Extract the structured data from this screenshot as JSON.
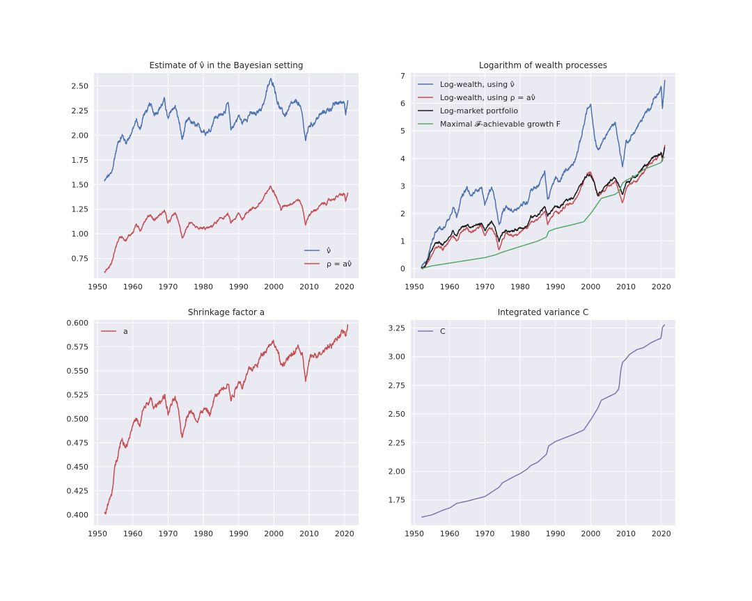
{
  "chart_data": [
    {
      "type": "line",
      "title": "Estimate of ν̂ in the Bayesian setting",
      "xlim": [
        1949,
        2024
      ],
      "ylim": [
        0.55,
        2.63
      ],
      "xticks": [
        1950,
        1960,
        1970,
        1980,
        1990,
        2000,
        2010,
        2020
      ],
      "yticks": [
        0.75,
        1.0,
        1.25,
        1.5,
        1.75,
        2.0,
        2.25,
        2.5
      ],
      "ytick_labels": [
        "0.75",
        "1.00",
        "1.25",
        "1.50",
        "1.75",
        "2.00",
        "2.25",
        "2.50"
      ],
      "legend_position": "lower-right",
      "grid": true,
      "series": [
        {
          "name": "ν̂",
          "color": "#4c72b0",
          "noise": 0.025,
          "x": [
            1952,
            1953,
            1954,
            1955,
            1956,
            1957,
            1958,
            1960,
            1961,
            1962,
            1963,
            1965,
            1966,
            1968,
            1969,
            1970,
            1971,
            1972,
            1973,
            1974,
            1975,
            1976,
            1978,
            1980,
            1982,
            1983,
            1985,
            1987,
            1987.8,
            1990,
            1991,
            1993,
            1995,
            1997,
            1998,
            1999,
            2000,
            2001,
            2002,
            2003,
            2005,
            2007,
            2008,
            2009,
            2010,
            2011,
            2013,
            2015,
            2017,
            2018,
            2019,
            2020,
            2020.3,
            2021
          ],
          "y": [
            1.53,
            1.58,
            1.6,
            1.8,
            1.95,
            2.0,
            1.93,
            2.05,
            2.15,
            2.05,
            2.2,
            2.3,
            2.22,
            2.3,
            2.35,
            2.15,
            2.25,
            2.3,
            2.15,
            1.95,
            2.1,
            2.15,
            2.08,
            2.05,
            2.05,
            2.18,
            2.2,
            2.32,
            2.05,
            2.2,
            2.12,
            2.22,
            2.2,
            2.32,
            2.45,
            2.55,
            2.52,
            2.35,
            2.25,
            2.2,
            2.3,
            2.33,
            2.2,
            1.95,
            2.1,
            2.12,
            2.2,
            2.25,
            2.3,
            2.32,
            2.33,
            2.35,
            2.25,
            2.35
          ]
        },
        {
          "name": "ρ = aν̂",
          "color": "#c44e52",
          "noise": 0.015,
          "x": [
            1952,
            1953,
            1954,
            1955,
            1956,
            1957,
            1958,
            1960,
            1961,
            1962,
            1963,
            1965,
            1966,
            1968,
            1969,
            1970,
            1971,
            1972,
            1973,
            1974,
            1975,
            1976,
            1978,
            1980,
            1982,
            1983,
            1985,
            1987,
            1987.8,
            1990,
            1991,
            1993,
            1995,
            1997,
            1998,
            1999,
            2000,
            2001,
            2002,
            2003,
            2005,
            2007,
            2008,
            2009,
            2010,
            2011,
            2013,
            2015,
            2017,
            2018,
            2019,
            2020,
            2020.3,
            2021
          ],
          "y": [
            0.61,
            0.65,
            0.7,
            0.85,
            0.95,
            0.98,
            0.94,
            1.02,
            1.1,
            1.02,
            1.12,
            1.2,
            1.14,
            1.2,
            1.24,
            1.1,
            1.16,
            1.21,
            1.12,
            0.95,
            1.05,
            1.1,
            1.05,
            1.05,
            1.06,
            1.1,
            1.15,
            1.2,
            1.1,
            1.2,
            1.15,
            1.25,
            1.27,
            1.35,
            1.42,
            1.48,
            1.45,
            1.35,
            1.25,
            1.28,
            1.32,
            1.35,
            1.28,
            1.1,
            1.2,
            1.22,
            1.28,
            1.32,
            1.36,
            1.38,
            1.39,
            1.4,
            1.33,
            1.41
          ]
        }
      ]
    },
    {
      "type": "line",
      "title": "Logarithm of wealth processes",
      "xlim": [
        1949,
        2024
      ],
      "ylim": [
        -0.35,
        7.1
      ],
      "xticks": [
        1950,
        1960,
        1970,
        1980,
        1990,
        2000,
        2010,
        2020
      ],
      "yticks": [
        0,
        1,
        2,
        3,
        4,
        5,
        6,
        7
      ],
      "ytick_labels": [
        "0",
        "1",
        "2",
        "3",
        "4",
        "5",
        "6",
        "7"
      ],
      "legend_position": "upper-left",
      "grid": true,
      "series": [
        {
          "name": "Log-wealth, using ν̂",
          "color": "#4c72b0",
          "noise": 0.07,
          "x": [
            1952,
            1953,
            1954,
            1955,
            1956,
            1957,
            1958,
            1960,
            1961,
            1962,
            1963,
            1965,
            1966,
            1968,
            1969,
            1970,
            1971,
            1972,
            1973,
            1974,
            1975,
            1976,
            1978,
            1980,
            1982,
            1983,
            1985,
            1987,
            1987.8,
            1990,
            1991,
            1993,
            1995,
            1997,
            1998,
            1999,
            2000,
            2001,
            2002,
            2003,
            2005,
            2007,
            2008,
            2009,
            2010,
            2011,
            2013,
            2015,
            2017,
            2018,
            2019,
            2020,
            2020.3,
            2021
          ],
          "y": [
            0.05,
            0.15,
            0.5,
            1.0,
            1.4,
            1.5,
            1.4,
            1.9,
            2.3,
            1.9,
            2.5,
            2.9,
            2.6,
            2.9,
            3.0,
            2.3,
            2.7,
            3.0,
            2.4,
            1.5,
            2.0,
            2.2,
            2.1,
            2.3,
            2.4,
            2.9,
            3.0,
            3.5,
            2.5,
            3.3,
            3.1,
            3.6,
            3.8,
            4.6,
            5.2,
            5.8,
            5.9,
            4.8,
            4.3,
            4.5,
            5.0,
            5.3,
            4.5,
            3.7,
            4.6,
            4.7,
            5.1,
            5.5,
            5.9,
            6.2,
            6.3,
            6.5,
            5.7,
            6.8
          ]
        },
        {
          "name": "Log-wealth, using ρ = aν̂",
          "color": "#c44e52",
          "noise": 0.045,
          "x": [
            1952,
            1953,
            1954,
            1955,
            1956,
            1957,
            1958,
            1960,
            1961,
            1962,
            1963,
            1965,
            1966,
            1968,
            1969,
            1970,
            1971,
            1972,
            1973,
            1974,
            1975,
            1976,
            1978,
            1980,
            1982,
            1983,
            1985,
            1987,
            1987.8,
            1990,
            1991,
            1993,
            1995,
            1997,
            1998,
            1999,
            2000,
            2001,
            2002,
            2003,
            2005,
            2007,
            2008,
            2009,
            2010,
            2011,
            2013,
            2015,
            2017,
            2018,
            2019,
            2020,
            2020.3,
            2021
          ],
          "y": [
            0.0,
            0.05,
            0.25,
            0.55,
            0.8,
            0.85,
            0.75,
            1.0,
            1.2,
            1.0,
            1.3,
            1.45,
            1.3,
            1.45,
            1.5,
            1.2,
            1.4,
            1.5,
            1.2,
            0.7,
            1.1,
            1.25,
            1.2,
            1.35,
            1.45,
            1.7,
            1.8,
            2.1,
            1.6,
            2.1,
            2.0,
            2.3,
            2.4,
            2.9,
            3.2,
            3.45,
            3.5,
            3.1,
            2.6,
            2.75,
            3.0,
            3.2,
            2.8,
            2.4,
            2.9,
            3.0,
            3.2,
            3.5,
            3.8,
            3.95,
            4.05,
            4.2,
            3.9,
            4.5
          ]
        },
        {
          "name": "Log-market portfolio",
          "color": "#1a1a1a",
          "noise": 0.045,
          "x": [
            1952,
            1953,
            1954,
            1955,
            1956,
            1957,
            1958,
            1960,
            1961,
            1962,
            1963,
            1965,
            1966,
            1968,
            1969,
            1970,
            1971,
            1972,
            1973,
            1974,
            1975,
            1976,
            1978,
            1980,
            1982,
            1983,
            1985,
            1987,
            1987.8,
            1990,
            1991,
            1993,
            1995,
            1997,
            1998,
            1999,
            2000,
            2001,
            2002,
            2003,
            2005,
            2007,
            2008,
            2009,
            2010,
            2011,
            2013,
            2015,
            2017,
            2018,
            2019,
            2020,
            2020.3,
            2021
          ],
          "y": [
            0.0,
            0.1,
            0.35,
            0.7,
            0.9,
            0.95,
            0.85,
            1.15,
            1.35,
            1.15,
            1.45,
            1.6,
            1.5,
            1.6,
            1.65,
            1.4,
            1.55,
            1.65,
            1.4,
            1.0,
            1.3,
            1.4,
            1.35,
            1.5,
            1.55,
            1.85,
            1.95,
            2.25,
            1.9,
            2.3,
            2.2,
            2.45,
            2.6,
            3.0,
            3.2,
            3.4,
            3.45,
            3.15,
            2.7,
            2.85,
            3.1,
            3.3,
            3.0,
            2.7,
            3.1,
            3.2,
            3.4,
            3.7,
            3.9,
            4.05,
            4.1,
            4.2,
            4.0,
            4.45
          ]
        },
        {
          "name": "Maximal 𝓕-achievable growth F",
          "color": "#55a868",
          "noise": 0.0,
          "x": [
            1952,
            1955,
            1960,
            1965,
            1970,
            1973,
            1975,
            1980,
            1985,
            1987.5,
            1988,
            1990,
            1995,
            1998,
            2000,
            2003,
            2007,
            2008,
            2009,
            2010,
            2013,
            2015,
            2018,
            2020,
            2020.2,
            2021
          ],
          "y": [
            0.0,
            0.1,
            0.2,
            0.3,
            0.4,
            0.5,
            0.6,
            0.8,
            1.0,
            1.15,
            1.35,
            1.45,
            1.6,
            1.7,
            2.0,
            2.55,
            2.7,
            2.8,
            3.1,
            3.2,
            3.4,
            3.6,
            3.75,
            3.85,
            4.0,
            4.05
          ]
        }
      ]
    },
    {
      "type": "line",
      "title": "Shrinkage factor a",
      "xlim": [
        1949,
        2024
      ],
      "ylim": [
        0.389,
        0.603
      ],
      "xticks": [
        1950,
        1960,
        1970,
        1980,
        1990,
        2000,
        2010,
        2020
      ],
      "yticks": [
        0.4,
        0.425,
        0.45,
        0.475,
        0.5,
        0.525,
        0.55,
        0.575,
        0.6
      ],
      "ytick_labels": [
        "0.400",
        "0.425",
        "0.450",
        "0.475",
        "0.500",
        "0.525",
        "0.550",
        "0.575",
        "0.600"
      ],
      "legend_position": "upper-left",
      "grid": true,
      "series": [
        {
          "name": "a",
          "color": "#c44e52",
          "noise": 0.003,
          "x": [
            1952,
            1953,
            1954,
            1955,
            1956,
            1957,
            1958,
            1960,
            1961,
            1962,
            1963,
            1965,
            1966,
            1968,
            1969,
            1970,
            1971,
            1972,
            1973,
            1974,
            1975,
            1976,
            1978,
            1980,
            1982,
            1983,
            1985,
            1987,
            1987.8,
            1990,
            1991,
            1993,
            1995,
            1997,
            1998,
            1999,
            2000,
            2001,
            2002,
            2003,
            2005,
            2007,
            2008,
            2009,
            2010,
            2011,
            2013,
            2015,
            2017,
            2018,
            2019,
            2020,
            2020.3,
            2021
          ],
          "y": [
            0.4,
            0.41,
            0.42,
            0.45,
            0.47,
            0.48,
            0.47,
            0.495,
            0.5,
            0.49,
            0.51,
            0.52,
            0.51,
            0.52,
            0.525,
            0.505,
            0.515,
            0.52,
            0.505,
            0.48,
            0.5,
            0.51,
            0.5,
            0.51,
            0.505,
            0.52,
            0.53,
            0.54,
            0.52,
            0.54,
            0.535,
            0.55,
            0.555,
            0.57,
            0.575,
            0.58,
            0.58,
            0.57,
            0.555,
            0.56,
            0.565,
            0.575,
            0.565,
            0.54,
            0.56,
            0.565,
            0.57,
            0.575,
            0.58,
            0.585,
            0.59,
            0.59,
            0.585,
            0.597
          ]
        }
      ]
    },
    {
      "type": "line",
      "title": "Integrated variance C",
      "xlim": [
        1949,
        2024
      ],
      "ylim": [
        1.53,
        3.32
      ],
      "xticks": [
        1950,
        1960,
        1970,
        1980,
        1990,
        2000,
        2010,
        2020
      ],
      "yticks": [
        1.75,
        2.0,
        2.25,
        2.5,
        2.75,
        3.0,
        3.25
      ],
      "ytick_labels": [
        "1.75",
        "2.00",
        "2.25",
        "2.50",
        "2.75",
        "3.00",
        "3.25"
      ],
      "legend_position": "upper-left",
      "grid": true,
      "series": [
        {
          "name": "C",
          "color": "#8172b2",
          "noise": 0.0,
          "x": [
            1952,
            1955,
            1958,
            1960,
            1962,
            1965,
            1970,
            1972,
            1974,
            1975,
            1978,
            1980,
            1982,
            1983,
            1985,
            1987.5,
            1988,
            1990,
            1995,
            1998,
            2000,
            2002,
            2003,
            2007,
            2008,
            2008.5,
            2009,
            2010,
            2011,
            2013,
            2015,
            2017,
            2019,
            2020,
            2020.2,
            2021
          ],
          "y": [
            1.6,
            1.62,
            1.66,
            1.68,
            1.72,
            1.74,
            1.78,
            1.82,
            1.86,
            1.9,
            1.95,
            1.98,
            2.02,
            2.05,
            2.08,
            2.15,
            2.22,
            2.26,
            2.32,
            2.36,
            2.45,
            2.55,
            2.62,
            2.68,
            2.72,
            2.88,
            2.95,
            2.98,
            3.02,
            3.06,
            3.08,
            3.12,
            3.15,
            3.16,
            3.25,
            3.28
          ]
        }
      ]
    }
  ]
}
